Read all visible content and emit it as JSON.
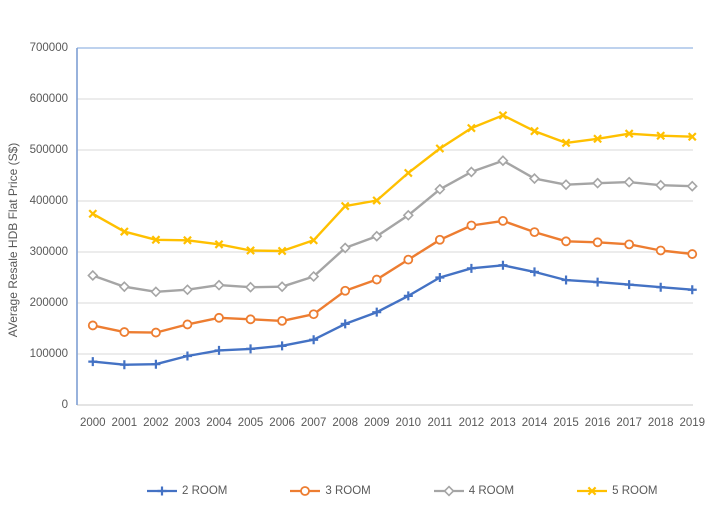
{
  "colors": {
    "series_blue": "#4472C4",
    "series_orange": "#ED7D31",
    "series_gray": "#A5A5A5",
    "series_yellow": "#FFC000",
    "gridline": "#D9D9D9",
    "axis_line": "#C9C9C9",
    "plot_border_left": "#7F9FD4",
    "plot_border_top": "#A9C4E9",
    "text": "#595959",
    "background": "#FFFFFF"
  },
  "chart_data": {
    "type": "line",
    "title": "",
    "xlabel": "",
    "ylabel": "AVerage Resale HDB Flat Price (S$)",
    "ylim": [
      0,
      700000
    ],
    "ytick_step": 100000,
    "yticks": [
      "0",
      "100000",
      "200000",
      "300000",
      "400000",
      "500000",
      "600000",
      "700000"
    ],
    "grid": "horizontal-only",
    "legend_position": "bottom",
    "x": [
      "2000",
      "2001",
      "2002",
      "2003",
      "2004",
      "2005",
      "2006",
      "2007",
      "2008",
      "2009",
      "2010",
      "2011",
      "2012",
      "2013",
      "2014",
      "2015",
      "2016",
      "2017",
      "2018",
      "2019"
    ],
    "series": [
      {
        "name": "2 ROOM",
        "color": "#4472C4",
        "marker": "plus",
        "values": [
          85000,
          79000,
          80000,
          96000,
          107000,
          110000,
          116000,
          128000,
          159000,
          182000,
          214000,
          250000,
          268000,
          274000,
          261000,
          245000,
          241000,
          236000,
          231000,
          226000
        ]
      },
      {
        "name": "3 ROOM",
        "color": "#ED7D31",
        "marker": "circle",
        "values": [
          156000,
          143000,
          142000,
          158000,
          171000,
          168000,
          165000,
          178000,
          224000,
          246000,
          285000,
          324000,
          352000,
          361000,
          339000,
          321000,
          319000,
          315000,
          303000,
          296000
        ]
      },
      {
        "name": "4 ROOM",
        "color": "#A5A5A5",
        "marker": "diamond",
        "values": [
          254000,
          232000,
          222000,
          226000,
          235000,
          231000,
          232000,
          252000,
          308000,
          331000,
          372000,
          423000,
          457000,
          479000,
          444000,
          432000,
          435000,
          437000,
          431000,
          429000
        ]
      },
      {
        "name": "5 ROOM",
        "color": "#FFC000",
        "marker": "x",
        "values": [
          375000,
          340000,
          324000,
          323000,
          315000,
          303000,
          302000,
          323000,
          390000,
          401000,
          455000,
          503000,
          543000,
          568000,
          537000,
          514000,
          522000,
          532000,
          528000,
          526000
        ]
      }
    ]
  }
}
